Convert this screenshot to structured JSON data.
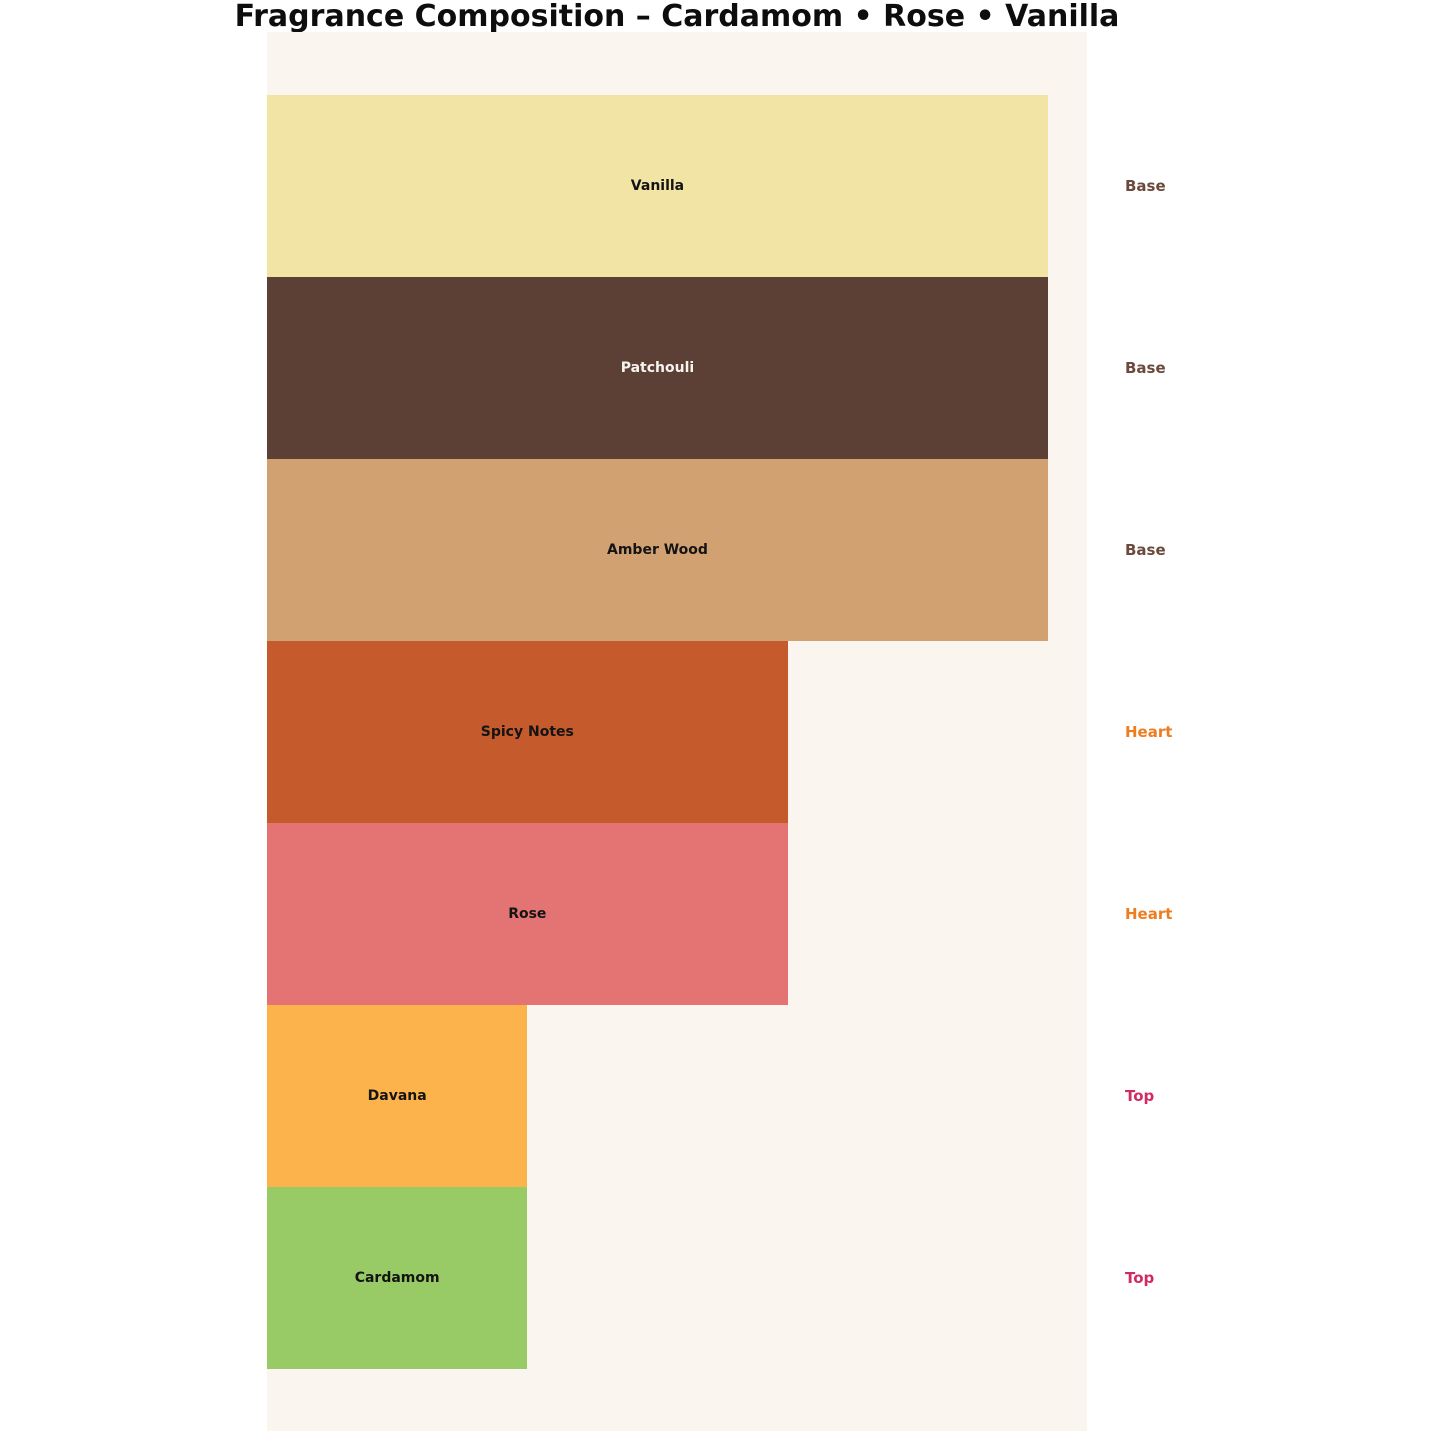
{
  "title": "Fragrance Composition – Cardamom • Rose • Vanilla",
  "chart_data": {
    "type": "bar",
    "orientation": "horizontal",
    "title": "Fragrance Composition – Cardamom • Rose • Vanilla",
    "xlabel": "",
    "ylabel": "",
    "xlim": [
      0,
      3.15
    ],
    "grid": false,
    "legend": "none",
    "plot_background": "#FAF5EE",
    "page_background": "#FFFFFF",
    "categories_top_to_bottom": [
      "Vanilla",
      "Patchouli",
      "Amber Wood",
      "Spicy Notes",
      "Rose",
      "Davana",
      "Cardamom"
    ],
    "values": [
      3,
      3,
      3,
      2,
      2,
      1,
      1
    ],
    "bars": [
      {
        "label": "Vanilla",
        "tier": "Base",
        "value": 3,
        "color": "#F2E4A5",
        "label_color": "#141414",
        "tier_color": "#6B4A3C"
      },
      {
        "label": "Patchouli",
        "tier": "Base",
        "value": 3,
        "color": "#5C4036",
        "label_color": "#F7F3EF",
        "tier_color": "#6B4A3C"
      },
      {
        "label": "Amber Wood",
        "tier": "Base",
        "value": 3,
        "color": "#D2A172",
        "label_color": "#141414",
        "tier_color": "#6B4A3C"
      },
      {
        "label": "Spicy Notes",
        "tier": "Heart",
        "value": 2,
        "color": "#C55A2C",
        "label_color": "#141414",
        "tier_color": "#EE7D1F"
      },
      {
        "label": "Rose",
        "tier": "Heart",
        "value": 2,
        "color": "#E47373",
        "label_color": "#141414",
        "tier_color": "#EE7D1F"
      },
      {
        "label": "Davana",
        "tier": "Top",
        "value": 1,
        "color": "#FCB34B",
        "label_color": "#141414",
        "tier_color": "#D22A64"
      },
      {
        "label": "Cardamom",
        "tier": "Top",
        "value": 1,
        "color": "#98CA65",
        "label_color": "#141414",
        "tier_color": "#D22A64"
      }
    ],
    "tiers": [
      {
        "name": "Base",
        "color": "#6B4A3C"
      },
      {
        "name": "Heart",
        "color": "#EE7D1F"
      },
      {
        "name": "Top",
        "color": "#D22A64"
      }
    ]
  }
}
